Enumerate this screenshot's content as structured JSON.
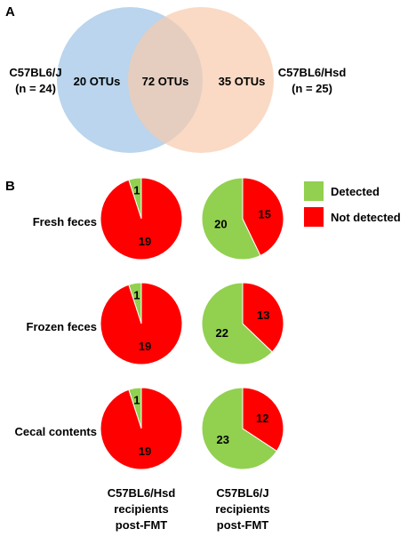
{
  "panel_a": {
    "label": "A",
    "left_group": {
      "name": "C57BL6/J",
      "n": "(n = 24)"
    },
    "right_group": {
      "name": "C57BL6/Hsd",
      "n": "(n = 25)"
    },
    "left_only": "20 OTUs",
    "shared": "72 OTUs",
    "right_only": "35 OTUs",
    "colors": {
      "left": "#9dc3e6",
      "right": "#f8cbad"
    }
  },
  "panel_b": {
    "label": "B",
    "legend": [
      {
        "label": "Detected",
        "color": "#92d050"
      },
      {
        "label": "Not detected",
        "color": "#ff0000"
      }
    ],
    "columns": [
      [
        "C57BL6/Hsd",
        "recipients",
        "post-FMT"
      ],
      [
        "C57BL6/J",
        "recipients",
        "post-FMT"
      ]
    ],
    "rows": [
      "Fresh feces",
      "Frozen feces",
      "Cecal contents"
    ]
  },
  "chart_data": [
    {
      "type": "venn",
      "sets": [
        "C57BL6/J (n = 24)",
        "C57BL6/Hsd (n = 25)"
      ],
      "values": {
        "C57BL6/J only": 20,
        "shared": 72,
        "C57BL6/Hsd only": 35
      },
      "unit": "OTUs"
    },
    {
      "type": "pie",
      "grid": [
        [
          {
            "detected": 1,
            "not_detected": 19
          },
          {
            "detected": 20,
            "not_detected": 15
          }
        ],
        [
          {
            "detected": 1,
            "not_detected": 19
          },
          {
            "detected": 22,
            "not_detected": 13
          }
        ],
        [
          {
            "detected": 1,
            "not_detected": 19
          },
          {
            "detected": 23,
            "not_detected": 12
          }
        ]
      ]
    }
  ]
}
